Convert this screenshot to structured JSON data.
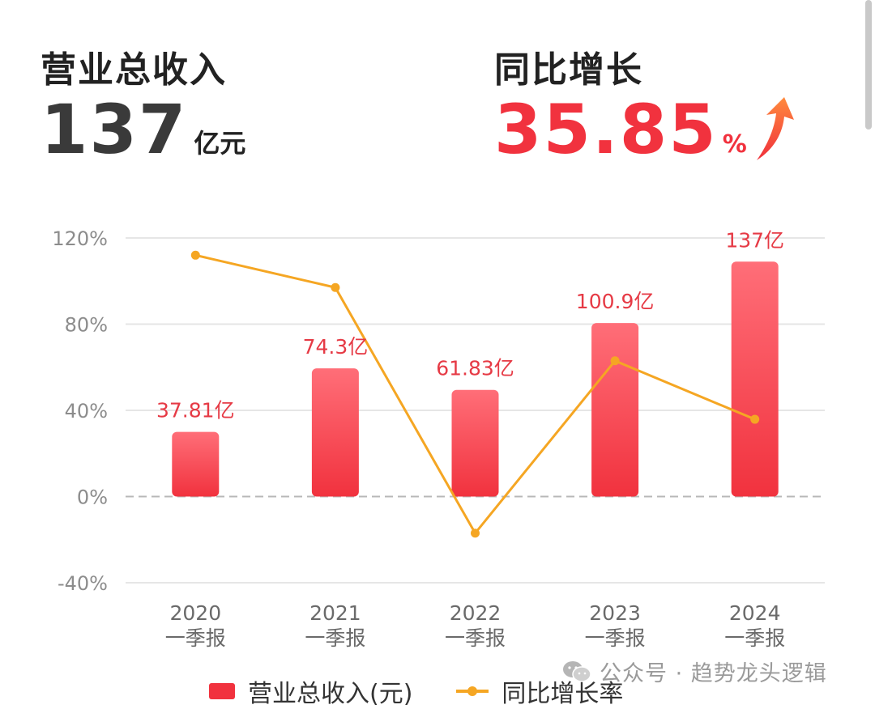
{
  "kpi": {
    "revenue_title": "营业总收入",
    "revenue_value": "137",
    "revenue_unit": "亿元",
    "growth_title": "同比增长",
    "growth_value": "35.85",
    "growth_unit": "%",
    "growth_icon": "up-arrow-icon"
  },
  "watermark": {
    "icon": "wechat-icon",
    "text": "公众号 · 趋势龙头逻辑"
  },
  "colors": {
    "bar": "#f1323e",
    "bar_light": "#ff6e78",
    "line": "#f5a623",
    "accent": "#f1323e"
  },
  "chart_data": {
    "type": "bar",
    "categories": [
      [
        "2020",
        "一季报"
      ],
      [
        "2021",
        "一季报"
      ],
      [
        "2022",
        "一季报"
      ],
      [
        "2023",
        "一季报"
      ],
      [
        "2024",
        "一季报"
      ]
    ],
    "y_ticks": [
      "120%",
      "80%",
      "40%",
      "0%",
      "-40%"
    ],
    "ylim": [
      -40,
      120
    ],
    "series": [
      {
        "name": "营业总收入(元)",
        "type": "bar",
        "values": [
          37.81,
          74.3,
          61.83,
          100.9,
          137
        ],
        "plotted_percent": [
          30,
          59.5,
          49.5,
          80.5,
          109
        ],
        "labels": [
          "37.81亿",
          "74.3亿",
          "61.83亿",
          "100.9亿",
          "137亿"
        ]
      },
      {
        "name": "同比增长率",
        "type": "line",
        "values": [
          112,
          97,
          -17,
          63,
          35.85
        ]
      }
    ],
    "grid": true,
    "legend_position": "bottom"
  }
}
